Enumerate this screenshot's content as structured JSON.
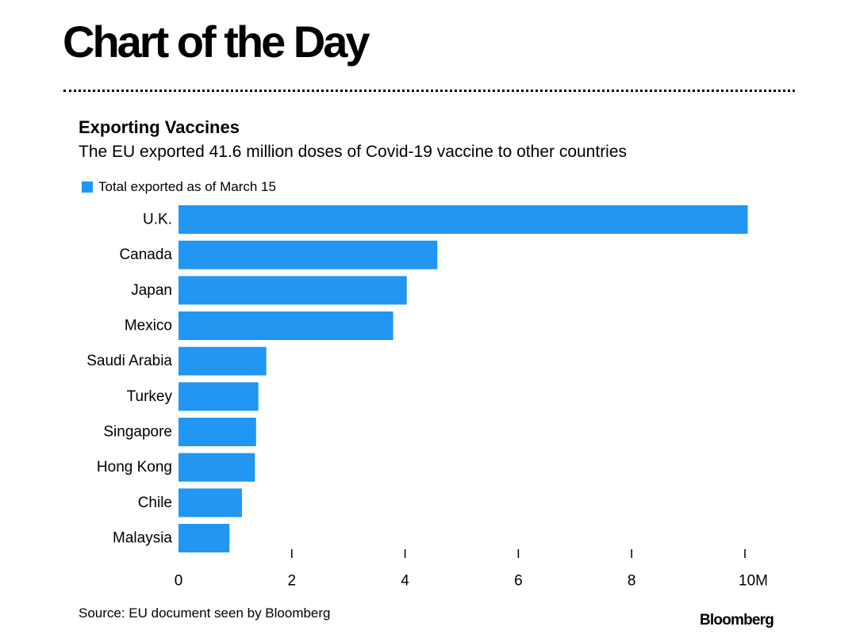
{
  "header": {
    "title": "Chart of the Day"
  },
  "chart_data": {
    "type": "bar",
    "orientation": "horizontal",
    "title": "Exporting Vaccines",
    "subtitle": "The EU exported 41.6 million doses of Covid-19 vaccine to other countries",
    "legend": [
      "Total exported as of March 15"
    ],
    "categories": [
      "U.K.",
      "Canada",
      "Japan",
      "Mexico",
      "Saudi Arabia",
      "Turkey",
      "Singapore",
      "Hong Kong",
      "Chile",
      "Malaysia"
    ],
    "series": [
      {
        "name": "Total exported as of March 15",
        "values": [
          10.05,
          4.57,
          4.03,
          3.79,
          1.55,
          1.41,
          1.37,
          1.35,
          1.12,
          0.9
        ]
      }
    ],
    "xlim": [
      0,
      10
    ],
    "xticks": [
      0,
      2,
      4,
      6,
      8,
      10
    ],
    "xtick_labels": [
      "0",
      "2",
      "4",
      "6",
      "8",
      "10M"
    ],
    "xlabel": "",
    "ylabel": "",
    "grid": false,
    "color": "#2196f3"
  },
  "footer": {
    "source": "Source: EU document seen by Bloomberg",
    "brand": "Bloomberg"
  }
}
